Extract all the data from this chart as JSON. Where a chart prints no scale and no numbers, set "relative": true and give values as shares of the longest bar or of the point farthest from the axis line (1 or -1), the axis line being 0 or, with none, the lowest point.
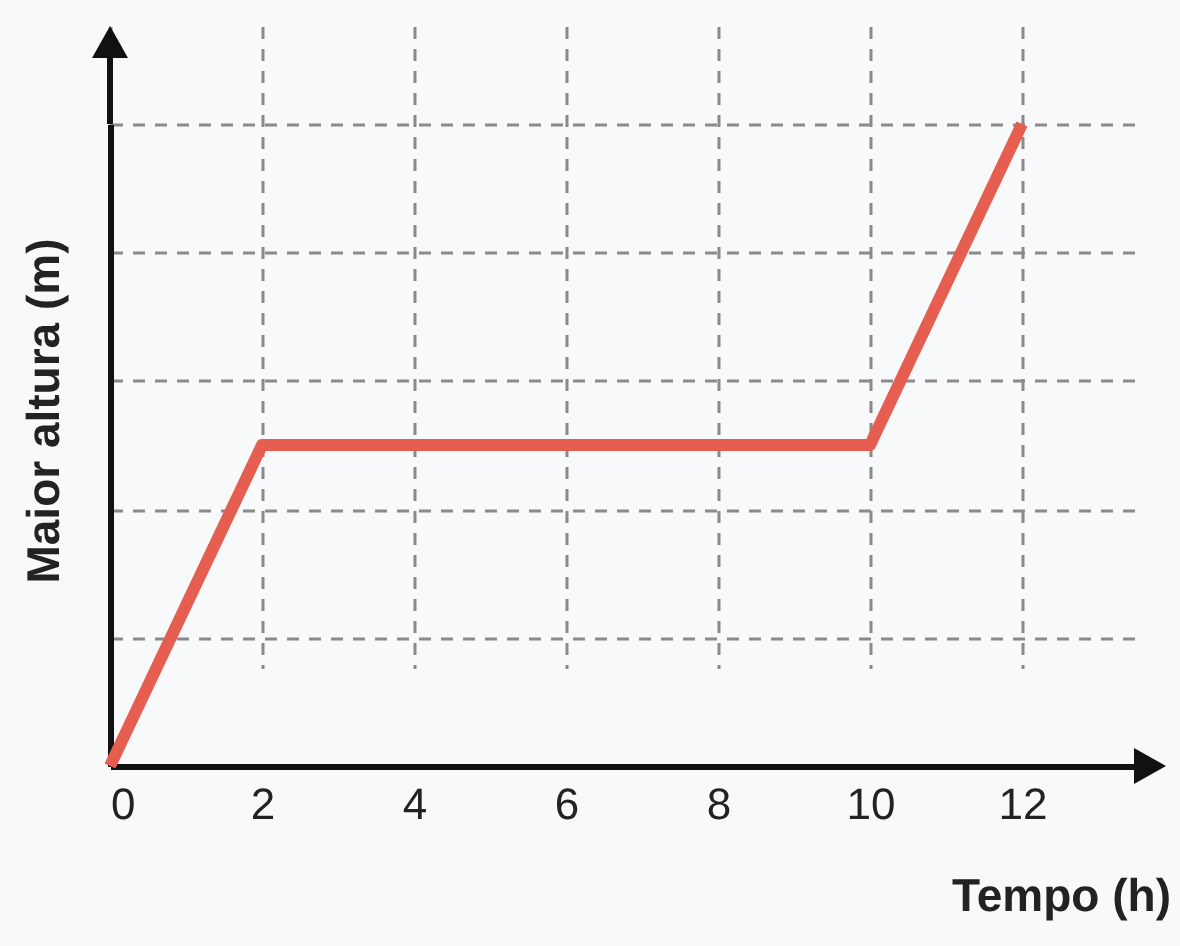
{
  "chart_data": {
    "type": "line",
    "xlabel": "Tempo (h)",
    "ylabel": "Maior altura (m)",
    "x": [
      0,
      2,
      10,
      12
    ],
    "series": [
      {
        "color": "#e65e4f",
        "values": [
          0,
          0.5,
          0.5,
          1
        ]
      }
    ],
    "relative": true,
    "xlim": [
      0,
      13.5
    ],
    "xticks": [
      0,
      2,
      4,
      6,
      8,
      10,
      12
    ],
    "grid": true
  }
}
